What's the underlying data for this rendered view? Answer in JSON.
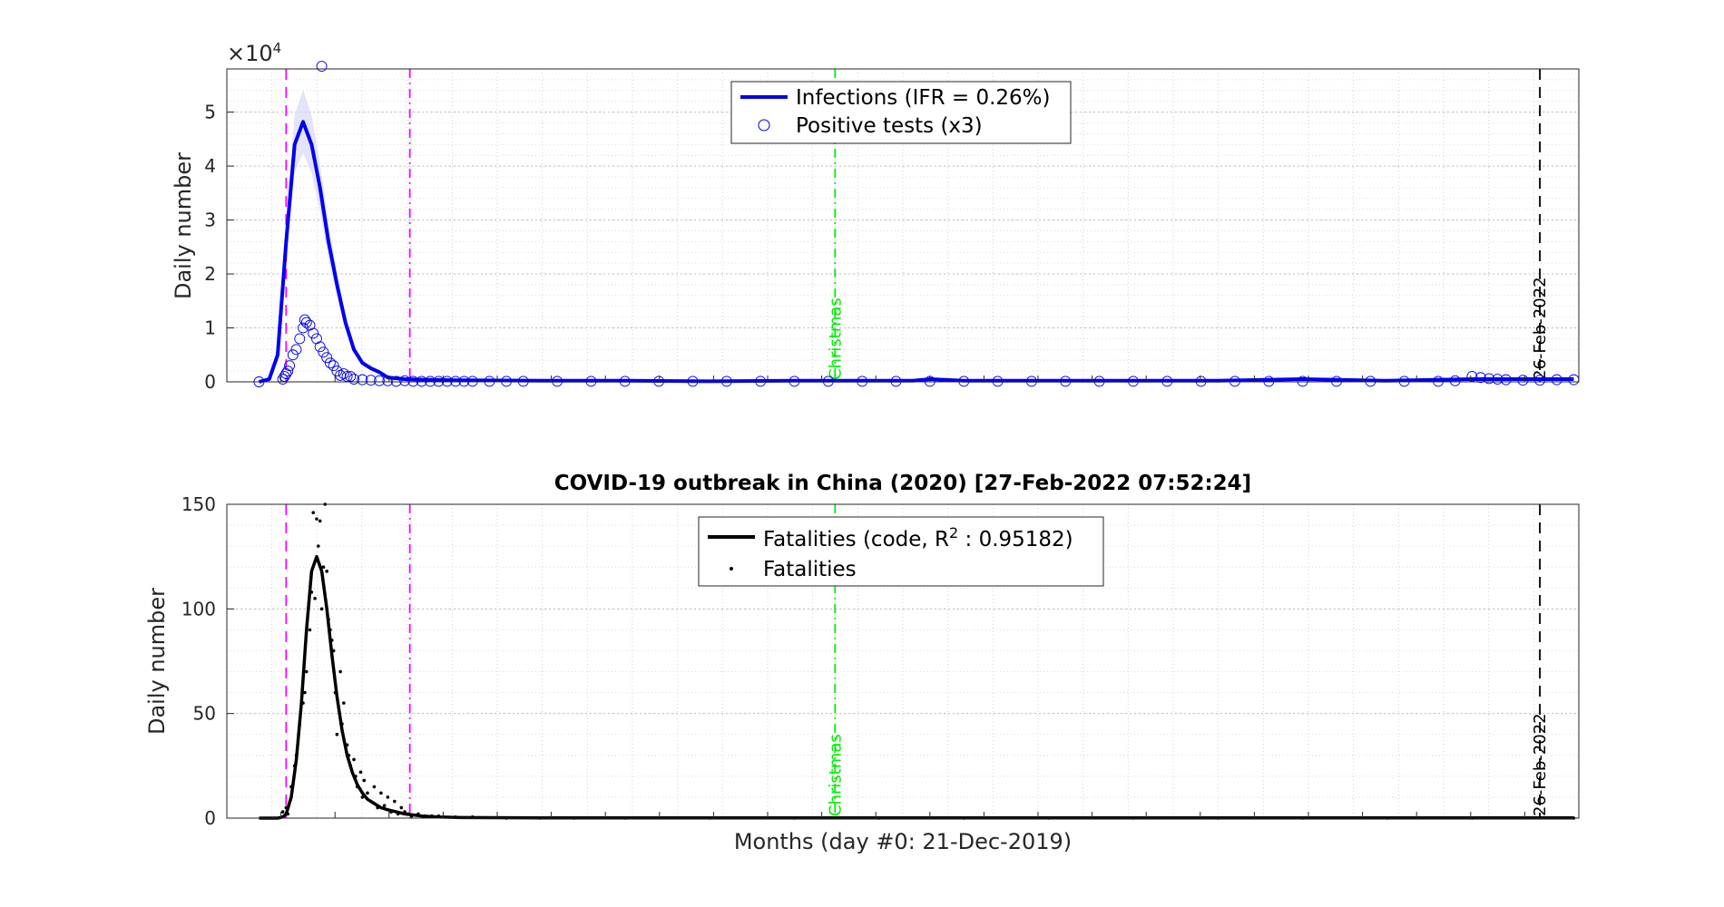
{
  "figure": {
    "title": "COVID-19 outbreak in China (2020) [27-Feb-2022 07:52:24]",
    "xlabel": "Months (day #0: 21-Dec-2019)"
  },
  "chart_data": [
    {
      "type": "line",
      "ylabel": "Daily number",
      "y_multiplier_label": "×10",
      "y_multiplier_exp": "4",
      "ylim": [
        0,
        5.8
      ],
      "yticks": [
        "0",
        "1",
        "2",
        "3",
        "4",
        "5"
      ],
      "ytick_values": [
        0,
        1,
        2,
        3,
        4,
        5
      ],
      "xlim": [
        -35,
        763
      ],
      "grid": true,
      "legend_position": "top-center",
      "series": [
        {
          "name": "Infections (IFR = 0.26%)",
          "style": "line",
          "color": "#0000ee",
          "x": [
            -16,
            -10,
            -5,
            0,
            5,
            10,
            15,
            20,
            25,
            30,
            35,
            40,
            45,
            50,
            55,
            60,
            70,
            80,
            100,
            150,
            200,
            250,
            300,
            370,
            380,
            400,
            450,
            500,
            550,
            600,
            650,
            700,
            730,
            760
          ],
          "y": [
            0,
            0.05,
            0.5,
            2.6,
            4.4,
            4.82,
            4.4,
            3.6,
            2.6,
            1.8,
            1.1,
            0.6,
            0.35,
            0.25,
            0.18,
            0.08,
            0.05,
            0.04,
            0.03,
            0.02,
            0.02,
            0.01,
            0.02,
            0.02,
            0.05,
            0.02,
            0.02,
            0.02,
            0.02,
            0.05,
            0.02,
            0.05,
            0.05,
            0.05
          ]
        },
        {
          "name": "Positive tests (x3)",
          "style": "marker-circle",
          "color": "#0000ee",
          "x": [
            -16,
            -2,
            -1,
            0,
            1,
            2,
            4,
            6,
            8,
            10,
            11,
            12,
            14,
            16,
            18,
            20,
            22,
            24,
            26,
            28,
            30,
            32,
            34,
            36,
            38,
            40,
            45,
            50,
            55,
            60,
            65,
            70,
            75,
            80,
            85,
            90,
            95,
            100,
            105,
            110,
            120,
            130,
            140,
            160,
            180,
            200,
            220,
            240,
            260,
            280,
            300,
            320,
            340,
            360,
            380,
            400,
            420,
            440,
            460,
            480,
            500,
            520,
            540,
            560,
            580,
            600,
            620,
            640,
            660,
            680,
            690,
            700,
            705,
            710,
            715,
            720,
            730,
            740,
            750,
            760
          ],
          "y": [
            0,
            0.05,
            0.1,
            0.15,
            0.2,
            0.3,
            0.5,
            0.6,
            0.8,
            1.0,
            1.15,
            1.1,
            1.05,
            0.9,
            0.8,
            0.65,
            0.55,
            0.45,
            0.35,
            0.3,
            0.2,
            0.12,
            0.15,
            0.1,
            0.1,
            0.05,
            0.04,
            0.03,
            0.02,
            0.02,
            0.01,
            0.02,
            0.01,
            0.01,
            0.01,
            0.01,
            0.01,
            0.01,
            0.01,
            0.01,
            0.01,
            0.01,
            0.01,
            0.01,
            0.01,
            0.01,
            0.01,
            0.01,
            0.01,
            0.01,
            0.01,
            0.01,
            0.01,
            0.01,
            0.01,
            0.01,
            0.01,
            0.01,
            0.01,
            0.01,
            0.01,
            0.01,
            0.01,
            0.01,
            0.01,
            0.01,
            0.01,
            0.01,
            0.01,
            0.01,
            0.02,
            0.1,
            0.08,
            0.06,
            0.05,
            0.04,
            0.03,
            0.03,
            0.04,
            0.04
          ]
        },
        {
          "name": "",
          "style": "outlier",
          "color": "#0000ee",
          "x": [
            21
          ],
          "y": [
            5.85
          ]
        }
      ]
    },
    {
      "type": "line",
      "ylabel": "Daily number",
      "ylim": [
        0,
        150
      ],
      "yticks": [
        "0",
        "50",
        "100",
        "150"
      ],
      "ytick_values": [
        0,
        50,
        100,
        150
      ],
      "xlim": [
        -35,
        763
      ],
      "grid": true,
      "legend_position": "top-center",
      "series": [
        {
          "name": "Fatalities (code, R",
          "name_sup": "2",
          "name_tail": " : 0.95182)",
          "style": "line",
          "color": "#000000",
          "x": [
            -16,
            -5,
            -2,
            0,
            3,
            6,
            9,
            12,
            15,
            18,
            21,
            24,
            27,
            30,
            33,
            36,
            39,
            42,
            45,
            48,
            52,
            56,
            60,
            65,
            70,
            75,
            80,
            90,
            100,
            150,
            200,
            300,
            400,
            500,
            600,
            700,
            760
          ],
          "y": [
            0,
            0,
            0.5,
            2,
            10,
            28,
            55,
            90,
            118,
            125,
            118,
            100,
            78,
            58,
            42,
            30,
            22,
            16,
            12,
            9,
            7,
            5,
            4,
            3,
            2,
            1.5,
            1,
            0.5,
            0.3,
            0.1,
            0.1,
            0.1,
            0.1,
            0.1,
            0.1,
            0.1,
            0.1
          ]
        },
        {
          "name": "Fatalities",
          "style": "marker-dot",
          "color": "#000000",
          "x": [
            -2,
            0,
            1,
            3,
            5,
            6,
            8,
            10,
            11,
            12,
            14,
            15,
            16,
            17,
            18,
            19,
            20,
            21,
            22,
            23,
            24,
            25,
            26,
            27,
            28,
            29,
            30,
            32,
            33,
            34,
            36,
            37,
            38,
            40,
            41,
            42,
            44,
            45,
            46,
            48,
            50,
            52,
            54,
            56,
            58,
            60,
            62,
            64,
            66,
            68,
            70,
            72,
            74,
            78,
            82,
            86,
            90,
            100,
            110,
            130,
            150,
            170,
            200,
            250,
            300,
            350,
            400,
            450,
            500,
            550,
            600,
            650,
            700,
            760
          ],
          "y": [
            3,
            5,
            2,
            15,
            25,
            30,
            45,
            55,
            60,
            70,
            90,
            108,
            146,
            105,
            143,
            130,
            142,
            100,
            120,
            150,
            118,
            95,
            90,
            85,
            80,
            60,
            40,
            70,
            45,
            55,
            35,
            30,
            25,
            28,
            20,
            15,
            22,
            10,
            18,
            12,
            8,
            15,
            5,
            12,
            6,
            10,
            3,
            8,
            2,
            5,
            3,
            2,
            1,
            2,
            1,
            1,
            1,
            0.5,
            0.5,
            0,
            0,
            0,
            0,
            0,
            0,
            0,
            0,
            0,
            0,
            0,
            0,
            0,
            0,
            0
          ]
        }
      ]
    }
  ],
  "vlines": [
    {
      "x": 0,
      "color": "#ff00ff",
      "dash": "12,8",
      "label": ""
    },
    {
      "x": 73,
      "color": "#ff00ff",
      "dash": "10,5,2,5",
      "label": ""
    },
    {
      "x": 324,
      "color": "#00ee00",
      "dash": "10,5,2,5",
      "label": "Christmas"
    },
    {
      "x": 740,
      "color": "#000000",
      "dash": "12,8",
      "label": "26-Feb-2022"
    }
  ]
}
